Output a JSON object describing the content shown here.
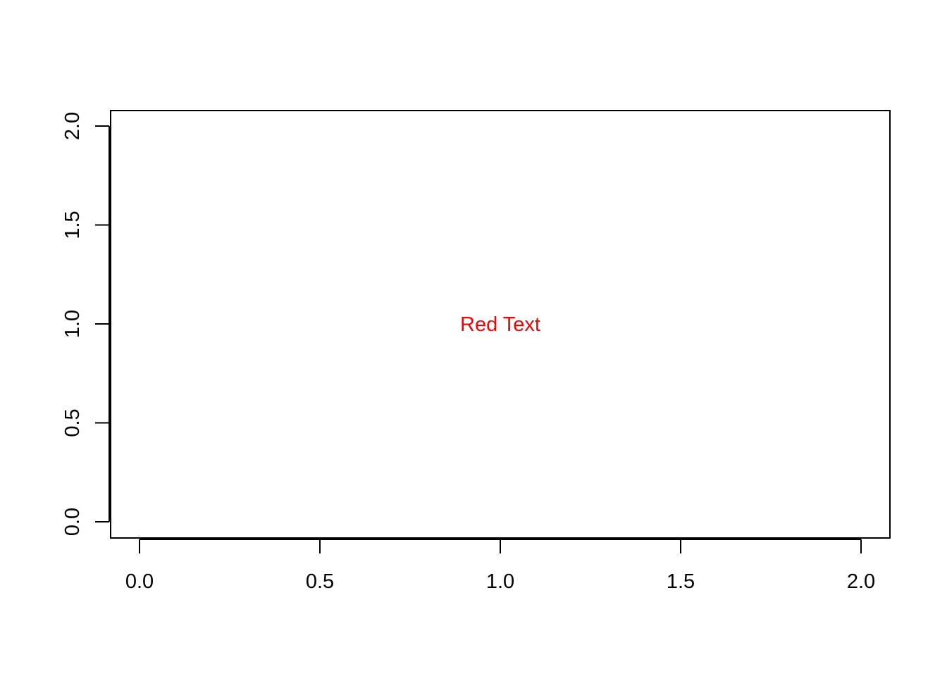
{
  "chart_data": {
    "type": "scatter",
    "title": "",
    "xlabel": "",
    "ylabel": "",
    "xlim": [
      0,
      2
    ],
    "ylim": [
      0,
      2
    ],
    "x_ticks": [
      0.0,
      0.5,
      1.0,
      1.5,
      2.0
    ],
    "y_ticks": [
      0.0,
      0.5,
      1.0,
      1.5,
      2.0
    ],
    "x_tick_labels": [
      "0.0",
      "0.5",
      "1.0",
      "1.5",
      "2.0"
    ],
    "y_tick_labels": [
      "0.0",
      "0.5",
      "1.0",
      "1.5",
      "2.0"
    ],
    "grid": false,
    "series": [],
    "annotations": [
      {
        "text": "Red Text",
        "x": 1.0,
        "y": 1.0,
        "color": "#ff0000"
      }
    ]
  },
  "colors": {
    "axis": "#000000",
    "background": "#ffffff"
  }
}
